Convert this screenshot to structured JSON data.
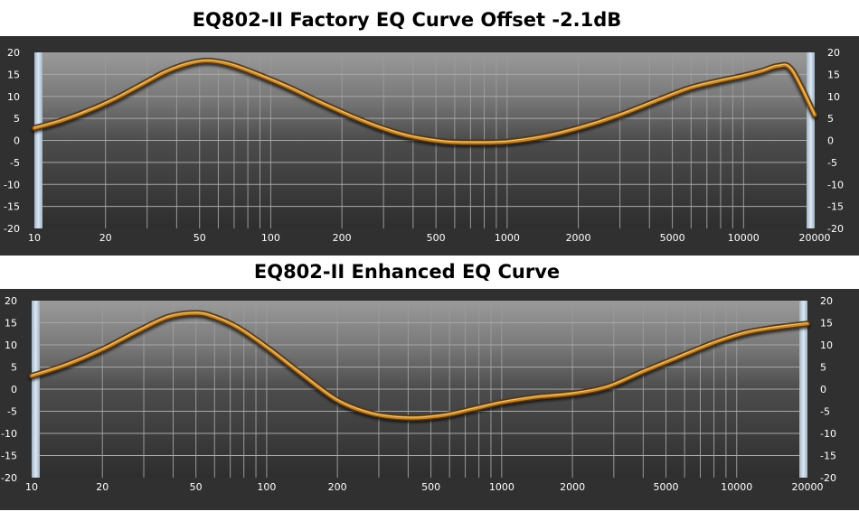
{
  "chart_data": [
    {
      "type": "line",
      "title": "EQ802-II Factory EQ Curve Offset -2.1dB",
      "xscale": "log",
      "xlim": [
        10,
        20000
      ],
      "ylim": [
        -20,
        20
      ],
      "xticks": [
        "10",
        "20",
        "50",
        "100",
        "200",
        "500",
        "1000",
        "2000",
        "5000",
        "10000",
        "20000"
      ],
      "yticks": [
        "20",
        "15",
        "10",
        "5",
        "0",
        "-5",
        "-10",
        "-15",
        "-20"
      ],
      "grid": true,
      "line_color": "#c8892a",
      "series": [
        {
          "x": [
            10,
            13,
            17,
            22,
            28,
            35,
            42,
            50,
            58,
            70,
            90,
            120,
            160,
            220,
            300,
            400,
            550,
            750,
            1000,
            1400,
            2000,
            3000,
            4500,
            6000,
            8000,
            10000,
            12000,
            14000,
            16000,
            20000
          ],
          "y": [
            2.8,
            4.5,
            6.8,
            9.5,
            12.5,
            15.3,
            17.0,
            18.0,
            18.0,
            17.0,
            14.8,
            12.0,
            8.8,
            5.5,
            2.7,
            0.8,
            -0.3,
            -0.5,
            -0.3,
            0.8,
            2.8,
            5.8,
            9.5,
            12.0,
            13.6,
            14.7,
            15.8,
            16.9,
            16.0,
            5.8
          ]
        }
      ]
    },
    {
      "type": "line",
      "title": "EQ802-II Enhanced EQ Curve",
      "xscale": "log",
      "xlim": [
        10,
        20000
      ],
      "ylim": [
        -20,
        20
      ],
      "xticks": [
        "10",
        "20",
        "50",
        "100",
        "200",
        "500",
        "1000",
        "2000",
        "5000",
        "10000",
        "20000"
      ],
      "yticks": [
        "20",
        "15",
        "10",
        "5",
        "0",
        "-5",
        "-10",
        "-15",
        "-20"
      ],
      "grid": true,
      "line_color": "#c8892a",
      "series": [
        {
          "x": [
            10,
            14,
            20,
            28,
            38,
            50,
            60,
            75,
            100,
            140,
            200,
            280,
            400,
            550,
            750,
            1000,
            1400,
            2000,
            2800,
            4000,
            5500,
            8000,
            11000,
            15000,
            20000
          ],
          "y": [
            3.0,
            5.5,
            9.0,
            13.0,
            16.3,
            17.2,
            16.3,
            14.0,
            9.5,
            3.5,
            -2.5,
            -5.5,
            -6.5,
            -6.0,
            -4.5,
            -3.0,
            -1.8,
            -1.0,
            0.5,
            4.0,
            7.0,
            10.5,
            12.8,
            14.0,
            14.8
          ]
        }
      ]
    }
  ]
}
